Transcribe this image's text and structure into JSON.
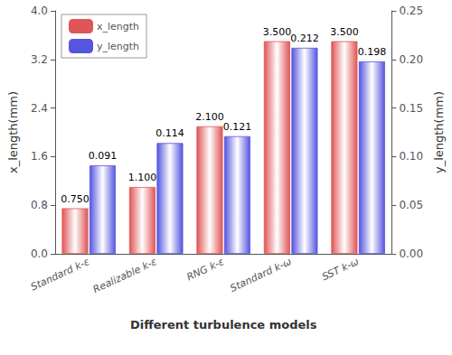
{
  "chart_data": {
    "type": "bar",
    "categories": [
      "Standard k-ε",
      "Realizable k-ε",
      "RNG k-ε",
      "Standard k-ω",
      "SST k-ω"
    ],
    "series": [
      {
        "name": "x_length",
        "color": "#e05555",
        "values": [
          0.75,
          1.1,
          2.1,
          3.5,
          3.5
        ],
        "value_labels": [
          "0.750",
          "1.100",
          "2.100",
          "3.500",
          "3.500"
        ]
      },
      {
        "name": "y_length",
        "color": "#5555e0",
        "axis": "y2",
        "values": [
          0.091,
          0.114,
          0.121,
          0.212,
          0.198
        ],
        "value_labels": [
          "0.091",
          "0.114",
          "0.121",
          "0.212",
          "0.198"
        ]
      }
    ],
    "xlabel": "Different turbulence models",
    "ylabel": "x_length(mm)",
    "y2label": "y_length(mm)",
    "ylim": [
      0.0,
      4.0
    ],
    "yticks": [
      {
        "value": 0,
        "label": "0.0"
      },
      0.8,
      1.6,
      2.4,
      3.2,
      {
        "value": 4,
        "label": "4.0"
      }
    ],
    "y2lim": [
      0.0,
      0.25
    ],
    "y2ticks": [
      {
        "value": 0,
        "label": "0.00"
      },
      0.05,
      {
        "value": 0.1,
        "label": "0.10"
      },
      0.15,
      {
        "value": 0.2,
        "label": "0.20"
      },
      0.25
    ],
    "legend": "upper left",
    "data_labels": true,
    "grid": false
  }
}
